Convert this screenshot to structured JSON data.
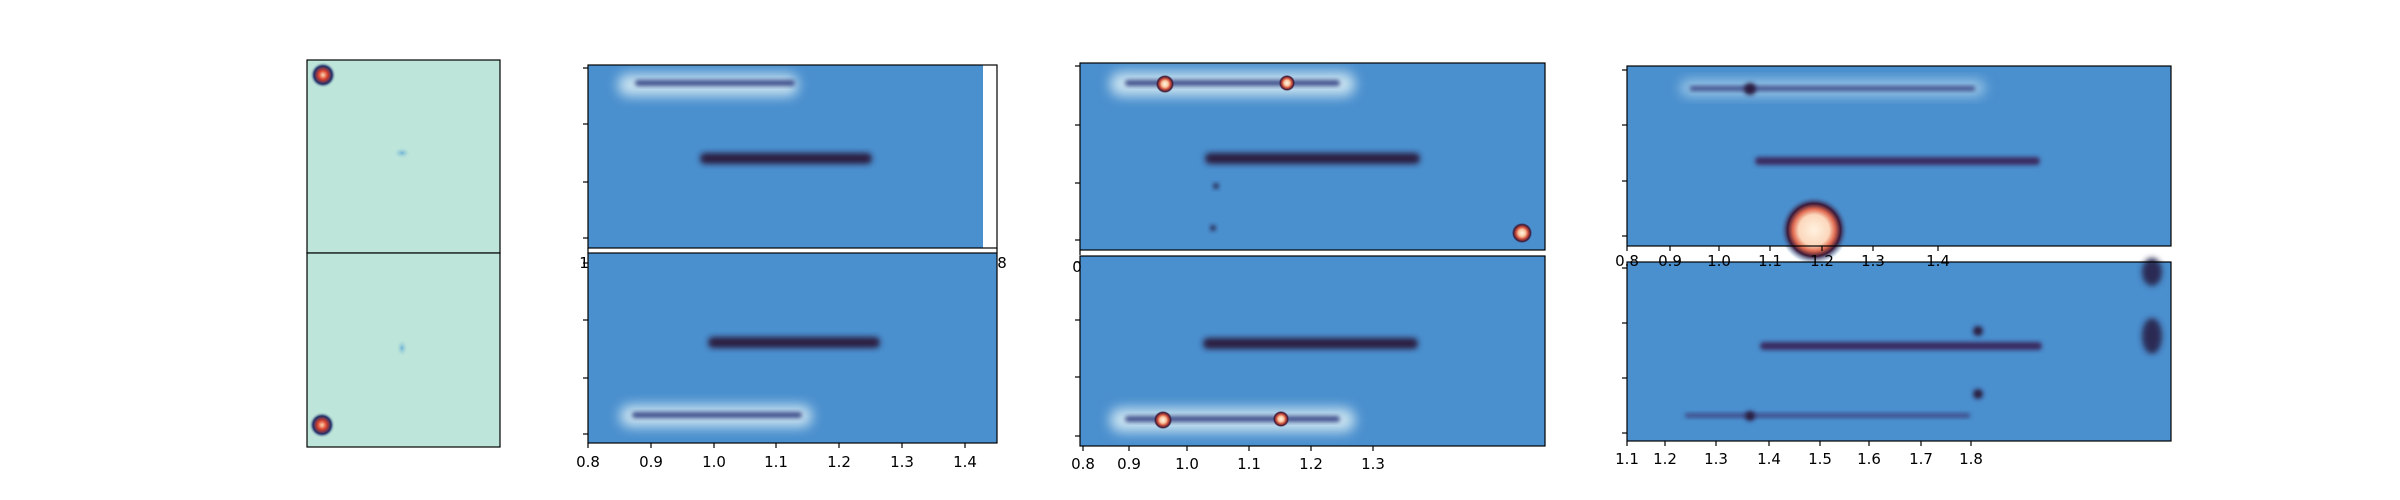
{
  "figure": {
    "columns": [
      {
        "id": "cutout"
      },
      {
        "id": "spectrum-1",
        "top_xticks": [
          "1",
          "8"
        ],
        "bottom_xticks": [
          "0.8",
          "0.9",
          "1.0",
          "1.1",
          "1.2",
          "1.3",
          "1.4"
        ]
      },
      {
        "id": "spectrum-2",
        "top_xticks": [
          "0"
        ],
        "bottom_xticks": [
          "0.8",
          "0.9",
          "1.0",
          "1.1",
          "1.2",
          "1.3"
        ]
      },
      {
        "id": "spectrum-3",
        "top_xticks": [
          "0.8",
          "0.9",
          "1.0",
          "1.1",
          "1.2",
          "1.3",
          "1.4"
        ],
        "bottom_xticks": [
          "1.1",
          "1.2",
          "1.3",
          "1.4",
          "1.5",
          "1.6",
          "1.7",
          "1.8"
        ]
      }
    ]
  },
  "colors": {
    "cutout_bg": "#bde5da",
    "spectrum_bg": "#4a8fce",
    "trace": "#2a1a40",
    "hot_core": "#fbe3c8",
    "hot_ring": "#d2503c",
    "halo": "#c8e2f0"
  }
}
